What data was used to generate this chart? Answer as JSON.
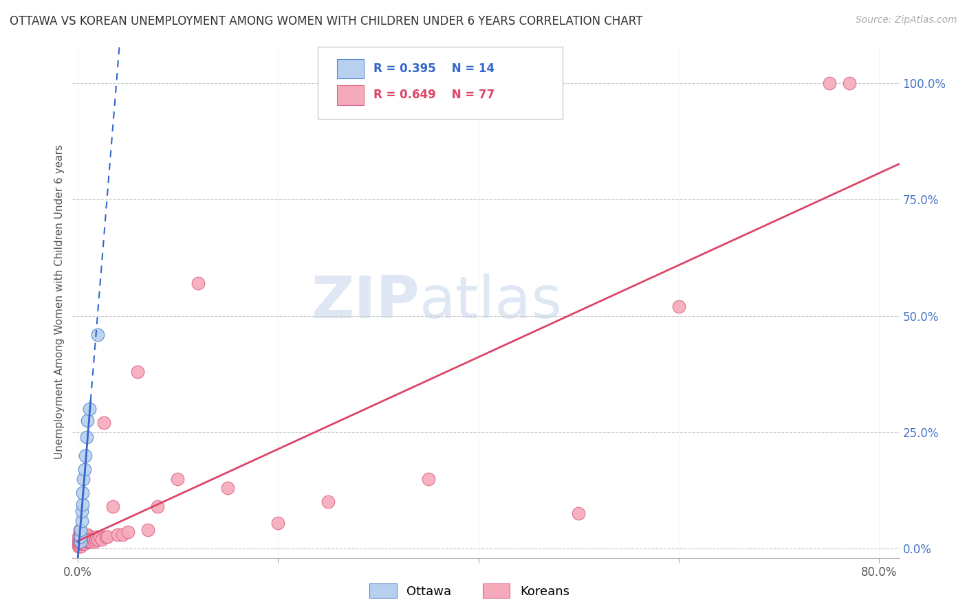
{
  "title": "OTTAWA VS KOREAN UNEMPLOYMENT AMONG WOMEN WITH CHILDREN UNDER 6 YEARS CORRELATION CHART",
  "source": "Source: ZipAtlas.com",
  "ylabel": "Unemployment Among Women with Children Under 6 years",
  "xlim": [
    -0.005,
    0.82
  ],
  "ylim": [
    -0.02,
    1.08
  ],
  "xticks": [
    0.0,
    0.2,
    0.4,
    0.6,
    0.8
  ],
  "yticks": [
    0.0,
    0.25,
    0.5,
    0.75,
    1.0
  ],
  "ottawa_color": "#b8d0f0",
  "ottawa_edge": "#5588cc",
  "korean_color": "#f5aabb",
  "korean_edge": "#dd6688",
  "ottawa_line_color": "#3366cc",
  "korean_line_color": "#dd4466",
  "watermark_zip": "ZIP",
  "watermark_atlas": "atlas",
  "ottawa_x": [
    0.003,
    0.003,
    0.003,
    0.004,
    0.004,
    0.005,
    0.005,
    0.006,
    0.007,
    0.008,
    0.009,
    0.01,
    0.012,
    0.02
  ],
  "ottawa_y": [
    0.015,
    0.025,
    0.04,
    0.06,
    0.08,
    0.095,
    0.12,
    0.15,
    0.17,
    0.2,
    0.24,
    0.275,
    0.3,
    0.46
  ],
  "korean_x": [
    0.001,
    0.001,
    0.001,
    0.001,
    0.001,
    0.002,
    0.002,
    0.002,
    0.002,
    0.002,
    0.002,
    0.002,
    0.003,
    0.003,
    0.003,
    0.003,
    0.003,
    0.003,
    0.004,
    0.004,
    0.004,
    0.004,
    0.004,
    0.005,
    0.005,
    0.005,
    0.005,
    0.006,
    0.006,
    0.006,
    0.006,
    0.007,
    0.007,
    0.007,
    0.008,
    0.008,
    0.008,
    0.009,
    0.009,
    0.01,
    0.01,
    0.01,
    0.011,
    0.011,
    0.012,
    0.012,
    0.013,
    0.013,
    0.014,
    0.015,
    0.016,
    0.017,
    0.018,
    0.019,
    0.02,
    0.022,
    0.024,
    0.026,
    0.028,
    0.03,
    0.035,
    0.04,
    0.045,
    0.05,
    0.06,
    0.07,
    0.08,
    0.1,
    0.12,
    0.15,
    0.2,
    0.25,
    0.35,
    0.5,
    0.6,
    0.75,
    0.77
  ],
  "korean_y": [
    0.005,
    0.01,
    0.015,
    0.02,
    0.025,
    0.005,
    0.01,
    0.015,
    0.02,
    0.03,
    0.035,
    0.04,
    0.005,
    0.01,
    0.015,
    0.02,
    0.025,
    0.03,
    0.01,
    0.015,
    0.02,
    0.025,
    0.03,
    0.01,
    0.015,
    0.02,
    0.025,
    0.01,
    0.015,
    0.02,
    0.025,
    0.01,
    0.02,
    0.03,
    0.015,
    0.02,
    0.025,
    0.015,
    0.02,
    0.015,
    0.02,
    0.03,
    0.015,
    0.025,
    0.015,
    0.02,
    0.015,
    0.02,
    0.015,
    0.02,
    0.02,
    0.015,
    0.02,
    0.025,
    0.02,
    0.025,
    0.02,
    0.27,
    0.025,
    0.025,
    0.09,
    0.03,
    0.03,
    0.035,
    0.38,
    0.04,
    0.09,
    0.15,
    0.57,
    0.13,
    0.055,
    0.1,
    0.15,
    0.075,
    0.52,
    1.0,
    1.0
  ]
}
